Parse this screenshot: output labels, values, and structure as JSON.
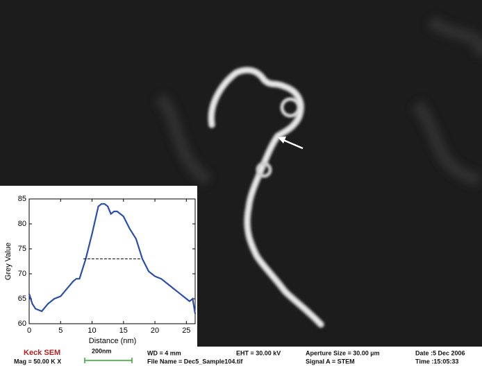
{
  "chart_data": {
    "type": "line",
    "x_label": "Distance (nm)",
    "y_label": "Grey Value",
    "x": [
      0,
      0.5,
      1,
      2,
      3,
      4,
      5,
      6,
      7,
      7.5,
      8,
      9,
      10,
      11,
      11.5,
      12,
      12.5,
      13,
      13.5,
      14,
      15,
      16,
      17,
      18,
      19,
      20,
      21,
      22,
      23,
      24,
      25,
      25.5,
      26,
      26.4
    ],
    "values": [
      66,
      64,
      63,
      62.5,
      64,
      65,
      65.5,
      67,
      68.5,
      69,
      69,
      73,
      78,
      83.5,
      84,
      84,
      83.5,
      82,
      82.5,
      82.5,
      81.5,
      79,
      77,
      73,
      70.5,
      69.5,
      69,
      68,
      67,
      66,
      65,
      64.5,
      65,
      62
    ],
    "color": "#2a4db0",
    "fwhm_line": {
      "y": 73,
      "x": [
        8.6,
        17.8
      ]
    },
    "xlim": [
      0,
      26.4
    ],
    "xticks": [
      0,
      5,
      10,
      15,
      20,
      25
    ],
    "ylim": [
      60,
      85
    ],
    "yticks": [
      60,
      65,
      70,
      75,
      80,
      85
    ]
  },
  "info_bar": {
    "name": "Keck SEM",
    "mag": "Mag = 50.00 K X",
    "scale": "200nm",
    "wd": "WD = 4 mm",
    "file": "File Name = Dec5_Sample104.tif",
    "eht": "EHT = 30.00 kV",
    "signal": "Signal A = STEM",
    "aperture": "Aperture Size = 30.00 µm",
    "date": "Date :5 Dec 2006",
    "time": "Time :15:05:33"
  }
}
